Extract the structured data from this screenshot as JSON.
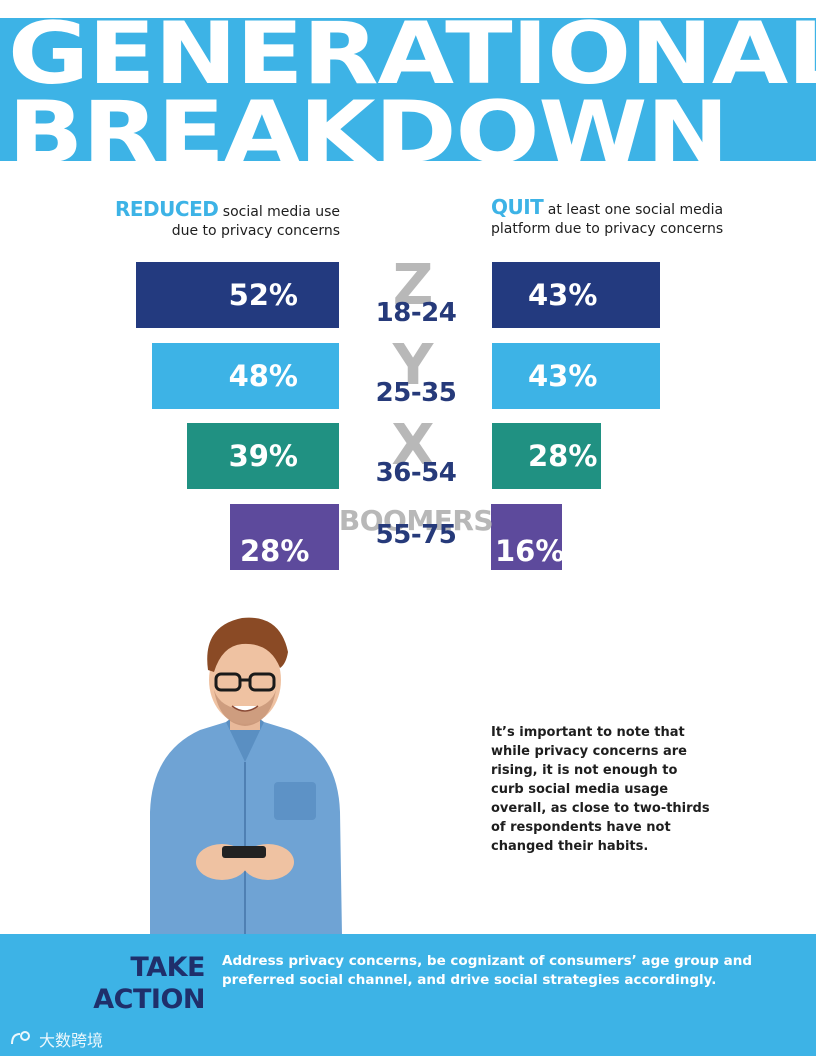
{
  "hero": {
    "line1": "GENERATIONAL",
    "line2": "BREAKDOWN"
  },
  "left_heading": {
    "highlight": "REDUCED",
    "text_line1": "social media use",
    "text_line2": "due to privacy concerns"
  },
  "right_heading": {
    "highlight": "QUIT",
    "text_line1": "at least one social media",
    "text_line2": "platform due to privacy concerns"
  },
  "rows": [
    {
      "generation": "Z",
      "age": "18-24",
      "reduced": "52%",
      "quit": "43%",
      "color": "#233a7f"
    },
    {
      "generation": "Y",
      "age": "25-35",
      "reduced": "48%",
      "quit": "43%",
      "color": "#3db3e6"
    },
    {
      "generation": "X",
      "age": "36-54",
      "reduced": "39%",
      "quit": "28%",
      "color": "#209182"
    },
    {
      "generation": "BOOMERS",
      "age": "55-75",
      "reduced": "28%",
      "quit": "16%",
      "color": "#5d4a9c"
    }
  ],
  "note": "It’s important to note that while privacy concerns are rising, it is not enough to curb social media usage overall, as close to two-thirds of respondents have not changed their habits.",
  "take_action": {
    "title_line1": "TAKE",
    "title_line2": "ACTION",
    "text": "Address privacy concerns, be cognizant of consumers’ age group and preferred social channel, and drive social strategies accordingly."
  },
  "watermark": {
    "text": "大数跨境"
  }
}
